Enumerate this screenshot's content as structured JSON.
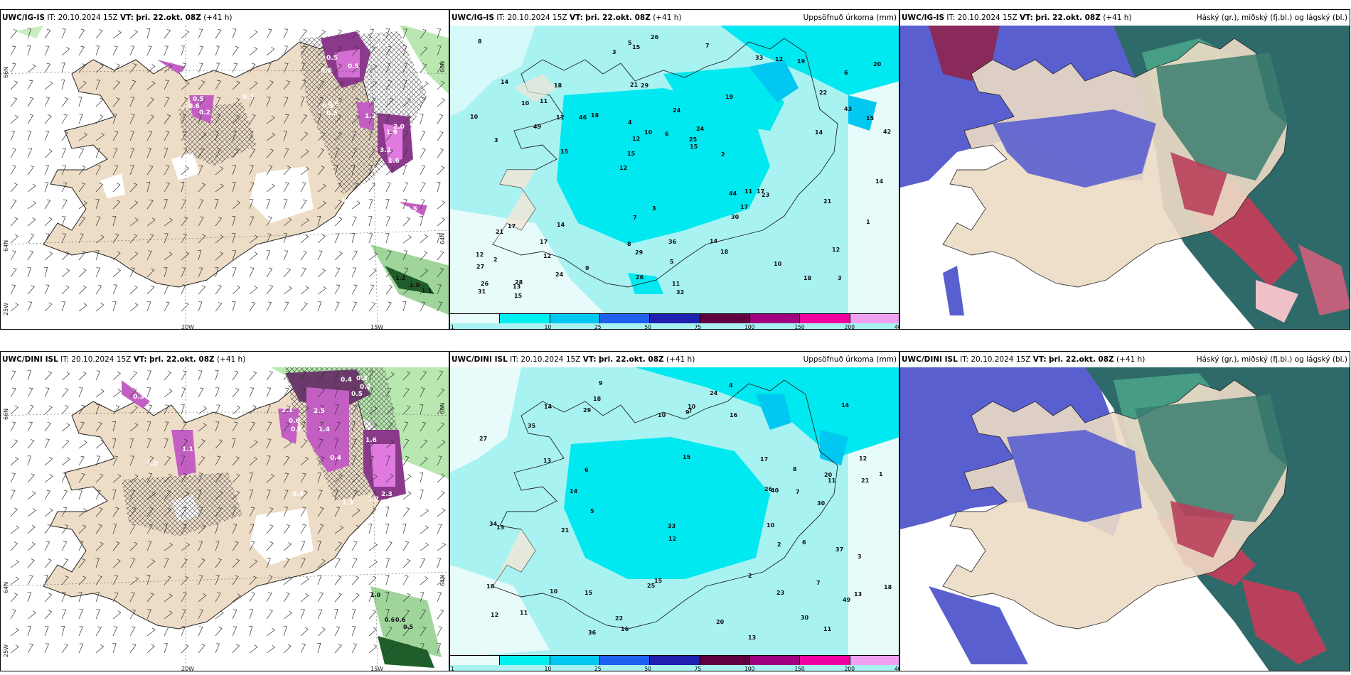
{
  "panels": {
    "tl": {
      "model": "UWC/IG-IS",
      "it": "IT: 20.10.2024 15Z",
      "vt_label": "VT:",
      "vt": "þri. 22.okt. 08Z",
      "lead": "(+41 h)",
      "title_right": ""
    },
    "tm": {
      "model": "UWC/IG-IS",
      "it": "IT: 20.10.2024 15Z",
      "vt_label": "VT:",
      "vt": "þri. 22.okt. 08Z",
      "lead": "(+41 h)",
      "title_right": "Uppsöfnuð úrkoma (mm)"
    },
    "tr": {
      "model": "UWC/IG-IS",
      "it": "IT: 20.10.2024 15Z",
      "vt_label": "VT:",
      "vt": "þri. 22.okt. 08Z",
      "lead": "(+41 h)",
      "title_right": "Háský (gr.), miðský (fj.bl.) og lágský (bl.)"
    },
    "bl": {
      "model": "UWC/DINI ISL",
      "it": "IT: 20.10.2024 15Z",
      "vt_label": "VT:",
      "vt": "þri. 22.okt. 08Z",
      "lead": "(+41 h)",
      "title_right": ""
    },
    "bm": {
      "model": "UWC/DINI ISL",
      "it": "IT: 20.10.2024 15Z",
      "vt_label": "VT:",
      "vt": "þri. 22.okt. 08Z",
      "lead": "(+41 h)",
      "title_right": "Uppsöfnuð úrkoma (mm)"
    },
    "br": {
      "model": "UWC/DINI ISL",
      "it": "IT: 20.10.2024 15Z",
      "vt_label": "VT:",
      "vt": "þri. 22.okt. 08Z",
      "lead": "(+41 h)",
      "title_right": "Háský (gr.), miðský (fj.bl.) og lágský (bl.)"
    }
  },
  "axis_labels": {
    "lat66": "66N",
    "lat64": "64N",
    "lat65": "65N",
    "lon25": "25W",
    "lon20": "20W",
    "lon15": "15W"
  },
  "precip_scale": {
    "ticks": [
      "1",
      "10",
      "25",
      "50",
      "75",
      "100",
      "150",
      "200",
      "400"
    ],
    "colors": [
      "#e8fbfb",
      "#00f0f0",
      "#00c8f0",
      "#2060f0",
      "#2020b0",
      "#600040",
      "#a00080",
      "#f000a0",
      "#f0a0f0"
    ]
  },
  "snow_values_top": [
    "0.4",
    "0.4",
    "0.5",
    "0.6",
    "0.5",
    "0.3",
    "0.6",
    "0.5",
    "0.5",
    "0.6",
    "0.2",
    "1.2",
    "1.9",
    "2.0",
    "1.3",
    "3.2",
    "1.6",
    "0.3",
    "0.5",
    "0.7",
    "0.4",
    "1.2",
    "1.0",
    "1.1"
  ],
  "snow_values_bottom": [
    "0.4",
    "0.3",
    "0.2",
    "0.5",
    "0.6",
    "2.1",
    "2.5",
    "1.4",
    "0.6",
    "0.4",
    "1.6",
    "2.3",
    "1.2",
    "1.3",
    "0.4",
    "0.4",
    "1.0",
    "1.1",
    "1.0",
    "0.6",
    "0.6",
    "0.5",
    "0.3"
  ],
  "precip_values_top": [
    "3",
    "3",
    "6",
    "12",
    "19",
    "28",
    "21",
    "24",
    "17",
    "18",
    "27",
    "12",
    "29",
    "24",
    "23",
    "14",
    "15",
    "42",
    "44",
    "43",
    "15",
    "8",
    "12",
    "18",
    "33",
    "14",
    "18",
    "12",
    "17",
    "32",
    "46",
    "49",
    "30",
    "24",
    "15",
    "25",
    "26",
    "29",
    "15",
    "21",
    "22",
    "20",
    "17",
    "18",
    "17",
    "15",
    "31",
    "36",
    "19",
    "26",
    "15",
    "10",
    "11",
    "12",
    "13",
    "7",
    "3",
    "10",
    "1",
    "7",
    "9",
    "11",
    "11",
    "12",
    "8",
    "10",
    "14",
    "4",
    "5",
    "6",
    "2",
    "2",
    "21",
    "26",
    "14",
    "3",
    "10",
    "11",
    "14",
    "5"
  ],
  "precip_values_bottom": [
    "7",
    "12",
    "13",
    "15",
    "12",
    "18",
    "20",
    "15",
    "14",
    "13",
    "21",
    "27",
    "30",
    "16",
    "18",
    "35",
    "49",
    "29",
    "15",
    "11",
    "34",
    "13",
    "20",
    "26",
    "22",
    "25",
    "24",
    "16",
    "17",
    "18",
    "21",
    "23",
    "36",
    "33",
    "37",
    "30",
    "40",
    "10",
    "11",
    "5",
    "6",
    "7",
    "9",
    "14",
    "3",
    "2",
    "11",
    "4",
    "6",
    "8",
    "10",
    "12",
    "7",
    "1",
    "2",
    "10",
    "9",
    "14",
    "13",
    "10"
  ]
}
